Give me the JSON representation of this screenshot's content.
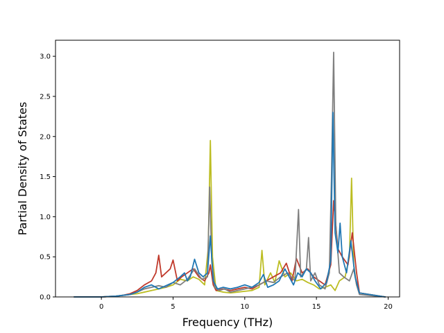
{
  "chart_data": {
    "type": "line",
    "title": "",
    "xlabel": "Frequency (THz)",
    "ylabel": "Partial Density of States",
    "xlim": [
      -3.2,
      20.8
    ],
    "ylim": [
      0,
      3.2
    ],
    "xticks": [
      0,
      5,
      10,
      15,
      20
    ],
    "xtick_labels": [
      "0",
      "5",
      "10",
      "15",
      "20"
    ],
    "yticks": [
      0.0,
      0.5,
      1.0,
      1.5,
      2.0,
      2.5,
      3.0
    ],
    "ytick_labels": [
      "0.0",
      "0.5",
      "1.0",
      "1.5",
      "2.0",
      "2.5",
      "3.0"
    ],
    "grid": false,
    "legend": "none",
    "series": [
      {
        "color": "#bcbd22",
        "x": [
          -1.9,
          0.0,
          0.5,
          1.0,
          1.5,
          2.0,
          2.5,
          3.0,
          3.5,
          4.0,
          4.5,
          5.0,
          5.5,
          6.0,
          6.4,
          6.8,
          7.2,
          7.45,
          7.6,
          7.75,
          8.0,
          8.5,
          9.0,
          9.5,
          10.0,
          10.5,
          11.0,
          11.2,
          11.4,
          11.8,
          12.1,
          12.4,
          12.8,
          13.2,
          13.6,
          14.0,
          14.4,
          14.8,
          15.2,
          15.6,
          16.0,
          16.3,
          16.6,
          17.0,
          17.3,
          17.45,
          17.6,
          17.8,
          18.0,
          19.8
        ],
        "y": [
          0.0,
          0.0,
          0.005,
          0.01,
          0.02,
          0.03,
          0.04,
          0.06,
          0.08,
          0.1,
          0.12,
          0.15,
          0.22,
          0.2,
          0.25,
          0.22,
          0.15,
          0.6,
          1.95,
          0.5,
          0.08,
          0.06,
          0.05,
          0.06,
          0.07,
          0.08,
          0.12,
          0.58,
          0.15,
          0.3,
          0.18,
          0.45,
          0.25,
          0.3,
          0.2,
          0.22,
          0.18,
          0.15,
          0.1,
          0.12,
          0.15,
          0.08,
          0.2,
          0.25,
          0.5,
          1.48,
          0.4,
          0.15,
          0.05,
          0.0
        ]
      },
      {
        "color": "#c0392b",
        "x": [
          -1.9,
          0.0,
          0.5,
          1.0,
          1.5,
          2.0,
          2.5,
          3.0,
          3.5,
          3.8,
          4.0,
          4.2,
          4.5,
          4.8,
          5.0,
          5.3,
          5.6,
          6.0,
          6.4,
          6.8,
          7.2,
          7.5,
          7.6,
          7.8,
          8.0,
          8.5,
          9.0,
          9.5,
          10.0,
          10.5,
          11.0,
          11.5,
          12.0,
          12.5,
          12.9,
          13.3,
          13.6,
          14.0,
          14.4,
          14.8,
          15.2,
          15.6,
          16.0,
          16.2,
          16.5,
          16.8,
          17.2,
          17.5,
          17.8,
          18.0,
          19.8
        ],
        "y": [
          0.0,
          0.0,
          0.005,
          0.01,
          0.02,
          0.04,
          0.08,
          0.15,
          0.2,
          0.3,
          0.52,
          0.25,
          0.3,
          0.35,
          0.46,
          0.2,
          0.25,
          0.3,
          0.35,
          0.25,
          0.2,
          0.3,
          0.4,
          0.15,
          0.08,
          0.1,
          0.08,
          0.1,
          0.12,
          0.1,
          0.15,
          0.2,
          0.25,
          0.3,
          0.42,
          0.2,
          0.48,
          0.3,
          0.35,
          0.25,
          0.2,
          0.15,
          0.4,
          1.2,
          0.6,
          0.5,
          0.4,
          0.8,
          0.3,
          0.05,
          0.0
        ]
      },
      {
        "color": "#7f7f7f",
        "x": [
          -1.9,
          0.0,
          0.5,
          1.0,
          1.5,
          2.0,
          2.5,
          3.0,
          3.5,
          4.0,
          4.5,
          5.0,
          5.5,
          6.0,
          6.5,
          7.0,
          7.4,
          7.55,
          7.7,
          7.9,
          8.2,
          8.6,
          9.0,
          9.5,
          10.0,
          10.5,
          11.0,
          11.5,
          12.0,
          12.5,
          13.0,
          13.5,
          13.75,
          13.9,
          14.1,
          14.3,
          14.45,
          14.6,
          14.9,
          15.2,
          15.6,
          15.9,
          16.05,
          16.2,
          16.35,
          16.6,
          16.9,
          17.3,
          17.6,
          17.8,
          18.0,
          19.8
        ],
        "y": [
          0.0,
          0.0,
          0.005,
          0.01,
          0.02,
          0.03,
          0.06,
          0.1,
          0.12,
          0.14,
          0.12,
          0.18,
          0.15,
          0.22,
          0.35,
          0.22,
          0.25,
          1.37,
          0.45,
          0.12,
          0.08,
          0.1,
          0.06,
          0.08,
          0.1,
          0.12,
          0.15,
          0.2,
          0.18,
          0.25,
          0.3,
          0.2,
          1.09,
          0.25,
          0.3,
          0.35,
          0.74,
          0.2,
          0.3,
          0.15,
          0.1,
          0.3,
          1.5,
          3.05,
          0.9,
          0.3,
          0.25,
          0.2,
          0.35,
          0.15,
          0.03,
          0.0
        ]
      },
      {
        "color": "#1f77b4",
        "x": [
          -1.9,
          0.0,
          0.5,
          1.0,
          1.5,
          2.0,
          2.5,
          3.0,
          3.5,
          4.0,
          4.5,
          5.0,
          5.5,
          5.8,
          6.0,
          6.2,
          6.5,
          6.8,
          7.1,
          7.4,
          7.6,
          7.8,
          8.1,
          8.5,
          9.0,
          9.5,
          10.0,
          10.5,
          11.0,
          11.3,
          11.6,
          12.0,
          12.4,
          12.8,
          13.1,
          13.4,
          13.7,
          14.0,
          14.3,
          14.6,
          14.9,
          15.3,
          15.7,
          16.0,
          16.15,
          16.3,
          16.5,
          16.65,
          16.8,
          17.1,
          17.4,
          17.7,
          18.0,
          19.8
        ],
        "y": [
          0.0,
          0.0,
          0.005,
          0.01,
          0.02,
          0.03,
          0.06,
          0.12,
          0.15,
          0.1,
          0.14,
          0.18,
          0.25,
          0.3,
          0.2,
          0.25,
          0.47,
          0.3,
          0.25,
          0.3,
          0.76,
          0.2,
          0.1,
          0.12,
          0.1,
          0.12,
          0.15,
          0.12,
          0.18,
          0.28,
          0.12,
          0.15,
          0.2,
          0.35,
          0.25,
          0.15,
          0.3,
          0.25,
          0.35,
          0.3,
          0.2,
          0.1,
          0.18,
          0.45,
          2.3,
          0.8,
          0.55,
          0.92,
          0.5,
          0.3,
          0.7,
          0.25,
          0.05,
          0.0
        ]
      }
    ]
  }
}
